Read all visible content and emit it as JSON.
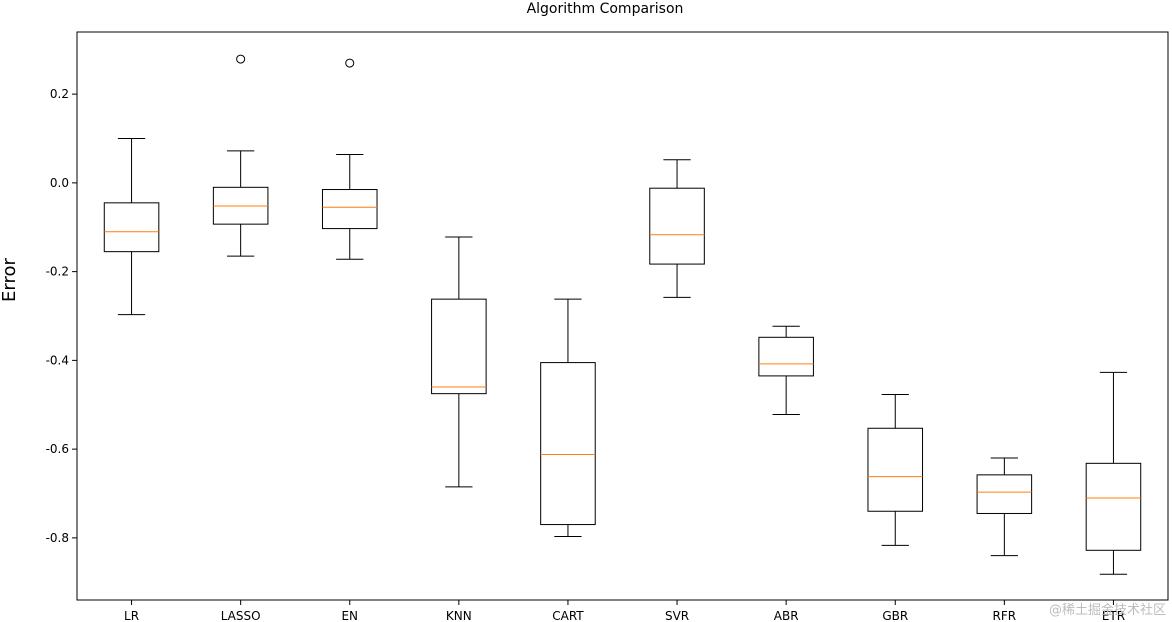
{
  "chart_data": {
    "type": "boxplot",
    "title": "Algorithm Comparison",
    "xlabel": "",
    "ylabel": "Error",
    "ylim": [
      -0.94,
      0.34
    ],
    "yticks": [
      0.2,
      0.0,
      -0.2,
      -0.4,
      -0.6,
      -0.8
    ],
    "ytick_labels": [
      "0.2",
      "0.0",
      "-0.2",
      "-0.4",
      "-0.6",
      "-0.8"
    ],
    "grid": false,
    "categories": [
      "LR",
      "LASSO",
      "EN",
      "KNN",
      "CART",
      "SVR",
      "ABR",
      "GBR",
      "RFR",
      "ETR"
    ],
    "boxes": [
      {
        "name": "LR",
        "whislo": -0.297,
        "q1": -0.155,
        "med": -0.11,
        "q3": -0.045,
        "whishi": 0.1,
        "fliers": []
      },
      {
        "name": "LASSO",
        "whislo": -0.165,
        "q1": -0.093,
        "med": -0.052,
        "q3": -0.01,
        "whishi": 0.072,
        "fliers": [
          0.279
        ]
      },
      {
        "name": "EN",
        "whislo": -0.172,
        "q1": -0.103,
        "med": -0.055,
        "q3": -0.015,
        "whishi": 0.064,
        "fliers": [
          0.27
        ]
      },
      {
        "name": "KNN",
        "whislo": -0.685,
        "q1": -0.475,
        "med": -0.46,
        "q3": -0.262,
        "whishi": -0.122,
        "fliers": []
      },
      {
        "name": "CART",
        "whislo": -0.797,
        "q1": -0.77,
        "med": -0.612,
        "q3": -0.405,
        "whishi": -0.262,
        "fliers": []
      },
      {
        "name": "SVR",
        "whislo": -0.258,
        "q1": -0.183,
        "med": -0.117,
        "q3": -0.012,
        "whishi": 0.052,
        "fliers": []
      },
      {
        "name": "ABR",
        "whislo": -0.522,
        "q1": -0.435,
        "med": -0.408,
        "q3": -0.348,
        "whishi": -0.323,
        "fliers": []
      },
      {
        "name": "GBR",
        "whislo": -0.817,
        "q1": -0.74,
        "med": -0.662,
        "q3": -0.553,
        "whishi": -0.477,
        "fliers": []
      },
      {
        "name": "RFR",
        "whislo": -0.84,
        "q1": -0.745,
        "med": -0.697,
        "q3": -0.658,
        "whishi": -0.62,
        "fliers": []
      },
      {
        "name": "ETR",
        "whislo": -0.882,
        "q1": -0.828,
        "med": -0.71,
        "q3": -0.632,
        "whishi": -0.427,
        "fliers": []
      }
    ],
    "colors": {
      "box": "#000000",
      "median": "#ff7f0e",
      "axes": "#000000",
      "background": "#ffffff"
    }
  },
  "watermark": "@稀土掘金技术社区"
}
